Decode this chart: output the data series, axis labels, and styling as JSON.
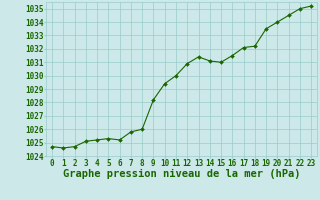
{
  "x": [
    0,
    1,
    2,
    3,
    4,
    5,
    6,
    7,
    8,
    9,
    10,
    11,
    12,
    13,
    14,
    15,
    16,
    17,
    18,
    19,
    20,
    21,
    22,
    23
  ],
  "y": [
    1024.7,
    1024.6,
    1024.7,
    1025.1,
    1025.2,
    1025.3,
    1025.2,
    1025.8,
    1026.0,
    1028.2,
    1029.4,
    1030.0,
    1030.9,
    1031.4,
    1031.1,
    1031.0,
    1031.5,
    1032.1,
    1032.2,
    1033.5,
    1034.0,
    1034.5,
    1035.0,
    1035.2
  ],
  "line_color": "#1a6600",
  "marker_color": "#1a6600",
  "bg_color": "#cce8e8",
  "grid_color": "#99cccc",
  "xlabel": "Graphe pression niveau de la mer (hPa)",
  "ylim": [
    1024,
    1035.5
  ],
  "xlim": [
    -0.5,
    23.5
  ],
  "yticks": [
    1024,
    1025,
    1026,
    1027,
    1028,
    1029,
    1030,
    1031,
    1032,
    1033,
    1034,
    1035
  ],
  "xticks": [
    0,
    1,
    2,
    3,
    4,
    5,
    6,
    7,
    8,
    9,
    10,
    11,
    12,
    13,
    14,
    15,
    16,
    17,
    18,
    19,
    20,
    21,
    22,
    23
  ],
  "tick_fontsize": 5.5,
  "xlabel_fontsize": 7.5,
  "tick_color": "#1a6600"
}
